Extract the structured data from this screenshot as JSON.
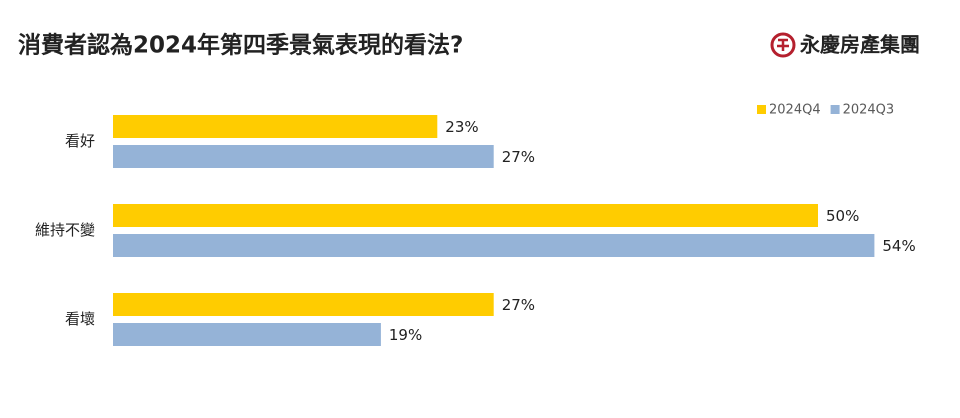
{
  "logo": "永慶房產集團",
  "chart_data": {
    "type": "bar",
    "orientation": "horizontal",
    "title": "消費者認為2024年第四季景氣表現的看法?",
    "categories": [
      "看好",
      "維持不變",
      "看壞"
    ],
    "series": [
      {
        "name": "2024Q4",
        "color": "#FFCC00",
        "values": [
          23,
          50,
          27
        ],
        "value_labels": [
          "23%",
          "50%",
          "27%"
        ]
      },
      {
        "name": "2024Q3",
        "color": "#95B3D7",
        "values": [
          27,
          54,
          19
        ],
        "value_labels": [
          "27%",
          "54%",
          "19%"
        ]
      }
    ],
    "legend": "top-right",
    "grid": false
  }
}
